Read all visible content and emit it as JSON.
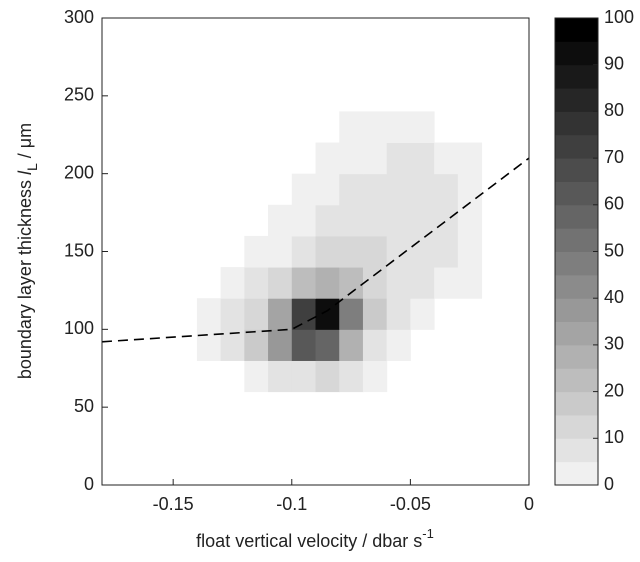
{
  "chart_data": {
    "type": "heatmap",
    "xlabel": "float vertical velocity / dbar s",
    "xlabel_sup": "-1",
    "ylabel": "boundary layer thickness ",
    "ylabel_var": "l",
    "ylabel_sub": "L",
    "ylabel_unit": " / μm",
    "x": [
      -0.135,
      -0.125,
      -0.115,
      -0.105,
      -0.095,
      -0.085,
      -0.075,
      -0.065,
      -0.055,
      -0.045,
      -0.035,
      -0.025,
      -0.015
    ],
    "y": [
      70,
      90,
      110,
      130,
      150,
      170,
      190,
      210,
      230
    ],
    "z": [
      [
        null,
        null,
        2,
        5,
        8,
        10,
        6,
        3,
        null,
        null,
        null,
        null,
        null
      ],
      [
        3,
        6,
        15,
        35,
        60,
        55,
        25,
        8,
        3,
        null,
        null,
        null,
        null
      ],
      [
        2,
        5,
        12,
        30,
        70,
        90,
        45,
        15,
        6,
        3,
        null,
        null,
        null
      ],
      [
        null,
        2,
        5,
        10,
        20,
        25,
        20,
        12,
        8,
        6,
        3,
        2,
        null
      ],
      [
        null,
        null,
        2,
        4,
        8,
        10,
        12,
        10,
        9,
        8,
        6,
        3,
        null
      ],
      [
        null,
        null,
        null,
        2,
        4,
        6,
        7,
        8,
        9,
        9,
        7,
        3,
        null
      ],
      [
        null,
        null,
        null,
        null,
        2,
        3,
        5,
        6,
        8,
        9,
        7,
        3,
        null
      ],
      [
        null,
        null,
        null,
        null,
        null,
        2,
        3,
        4,
        5,
        6,
        4,
        2,
        null
      ],
      [
        null,
        null,
        null,
        null,
        null,
        null,
        2,
        2,
        3,
        2,
        null,
        null,
        null
      ]
    ],
    "fit_line": {
      "x": [
        -0.18,
        -0.1,
        -0.085,
        0
      ],
      "y": [
        92,
        100,
        112,
        210
      ],
      "color": "#000000"
    },
    "xlim": [
      -0.18,
      0
    ],
    "ylim": [
      0,
      300
    ],
    "xticks": [
      -0.15,
      -0.1,
      -0.05,
      0
    ],
    "yticks": [
      0,
      50,
      100,
      150,
      200,
      250,
      300
    ],
    "clim": [
      0,
      100
    ],
    "clevels": 20,
    "cticks": [
      0,
      10,
      20,
      30,
      40,
      50,
      60,
      70,
      80,
      90,
      100
    ]
  }
}
